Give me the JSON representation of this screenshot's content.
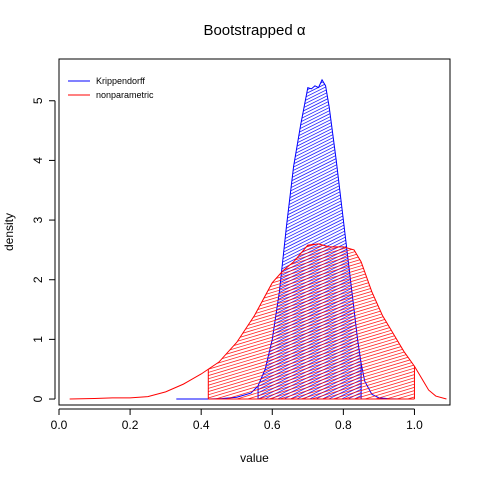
{
  "chart_data": {
    "type": "area",
    "title": "Bootstrapped α",
    "xlabel": "value",
    "ylabel": "density",
    "xlim": [
      0.0,
      1.1
    ],
    "ylim": [
      -0.1,
      5.7
    ],
    "xticks": [
      0.0,
      0.2,
      0.4,
      0.6,
      0.8,
      1.0
    ],
    "xtick_labels": [
      "0.0",
      "0.2",
      "0.4",
      "0.6",
      "0.8",
      "1.0"
    ],
    "yticks": [
      0,
      1,
      2,
      3,
      4,
      5
    ],
    "ytick_labels": [
      "0",
      "1",
      "2",
      "3",
      "4",
      "5"
    ],
    "legend_position": "top-left",
    "grid": false,
    "series": [
      {
        "name": "Krippendorff",
        "color": "#0000ff",
        "shaded_interval": [
          0.56,
          0.85
        ],
        "x": [
          0.33,
          0.42,
          0.46,
          0.5,
          0.54,
          0.56,
          0.58,
          0.6,
          0.62,
          0.64,
          0.66,
          0.68,
          0.7,
          0.71,
          0.72,
          0.73,
          0.74,
          0.75,
          0.76,
          0.78,
          0.8,
          0.81,
          0.82,
          0.83,
          0.84,
          0.85,
          0.86,
          0.88,
          0.9,
          0.93,
          0.96
        ],
        "y": [
          0.0,
          0.0,
          0.01,
          0.03,
          0.1,
          0.22,
          0.5,
          1.0,
          1.8,
          2.9,
          3.9,
          4.6,
          5.22,
          5.2,
          5.25,
          5.22,
          5.35,
          5.25,
          4.9,
          4.0,
          3.0,
          2.5,
          2.0,
          1.5,
          1.0,
          0.6,
          0.3,
          0.08,
          0.02,
          0.005,
          0.0
        ]
      },
      {
        "name": "nonparametric",
        "color": "#ff0000",
        "shaded_interval": [
          0.42,
          1.0
        ],
        "x": [
          0.03,
          0.1,
          0.15,
          0.2,
          0.25,
          0.3,
          0.35,
          0.4,
          0.45,
          0.5,
          0.55,
          0.6,
          0.63,
          0.66,
          0.7,
          0.73,
          0.76,
          0.8,
          0.83,
          0.85,
          0.88,
          0.91,
          0.94,
          0.97,
          1.0,
          1.02,
          1.04,
          1.06,
          1.09
        ],
        "y": [
          0.0,
          0.01,
          0.02,
          0.02,
          0.04,
          0.12,
          0.25,
          0.42,
          0.62,
          0.95,
          1.4,
          1.95,
          2.15,
          2.3,
          2.58,
          2.6,
          2.55,
          2.55,
          2.5,
          2.3,
          1.8,
          1.4,
          1.1,
          0.8,
          0.55,
          0.35,
          0.15,
          0.05,
          0.0
        ]
      }
    ]
  }
}
